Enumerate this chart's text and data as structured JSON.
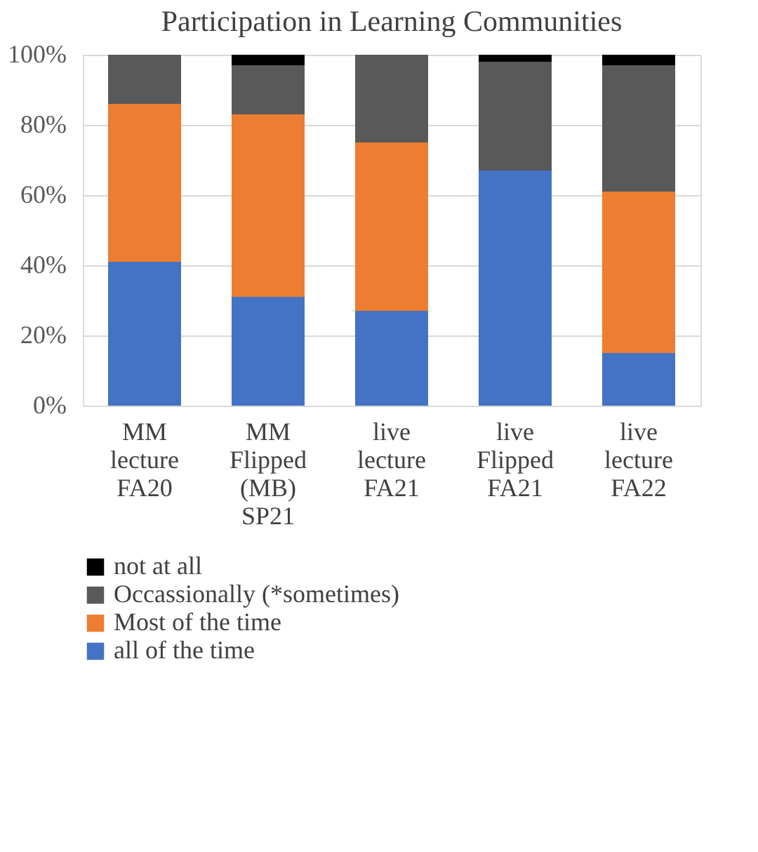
{
  "chart_data": {
    "type": "bar",
    "stacked": true,
    "title": "Participation in Learning Communities",
    "categories": [
      "MM lecture FA20",
      "MM Flipped (MB) SP21",
      "live lecture FA21",
      "live Flipped FA21",
      "live lecture FA22"
    ],
    "series": [
      {
        "name": "all of the time",
        "color": "#4472c4",
        "values": [
          41,
          31,
          27,
          67,
          15
        ]
      },
      {
        "name": "Most of the time",
        "color": "#ed7d31",
        "values": [
          45,
          52,
          48,
          0,
          46
        ]
      },
      {
        "name": "Occassionally (*sometimes)",
        "color": "#595959",
        "values": [
          14,
          14,
          25,
          31,
          36
        ]
      },
      {
        "name": "not at all",
        "color": "#000000",
        "values": [
          0,
          3,
          0,
          2,
          3
        ]
      }
    ],
    "ylim": [
      0,
      100
    ],
    "yticks": [
      {
        "value": 0,
        "label": "0%"
      },
      {
        "value": 20,
        "label": "20%"
      },
      {
        "value": 40,
        "label": "40%"
      },
      {
        "value": 60,
        "label": "60%"
      },
      {
        "value": 80,
        "label": "80%"
      },
      {
        "value": 100,
        "label": "100%"
      }
    ],
    "grid": "y",
    "legend": "bottom"
  }
}
